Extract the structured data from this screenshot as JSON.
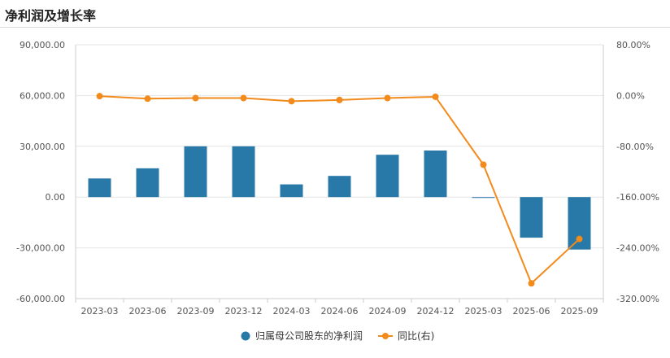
{
  "title": "净利润及增长率",
  "chart_data": {
    "type": "bar+line",
    "categories": [
      "2023-03",
      "2023-06",
      "2023-09",
      "2023-12",
      "2024-03",
      "2024-06",
      "2024-09",
      "2024-12",
      "2025-03",
      "2025-06",
      "2025-09"
    ],
    "series": [
      {
        "name": "归属母公司股东的净利润",
        "type": "bar",
        "axis": "left",
        "color": "#2878a8",
        "values": [
          11000,
          17000,
          30000,
          30000,
          7500,
          12500,
          25000,
          27500,
          -500,
          -24000,
          -31000
        ]
      },
      {
        "name": "同比(右)",
        "type": "line",
        "axis": "right",
        "color": "#f28a1c",
        "values": [
          -1,
          -5,
          -4,
          -4,
          -9,
          -7,
          -4,
          -2,
          -109,
          -296,
          -226
        ]
      }
    ],
    "y_left": {
      "ticks": [
        "90,000.00",
        "60,000.00",
        "30,000.00",
        "0.00",
        "-30,000.00",
        "-60,000.00"
      ],
      "ylim": [
        -60000,
        90000
      ]
    },
    "y_right": {
      "ticks": [
        "80.00%",
        "0.00%",
        "-80.00%",
        "-160.00%",
        "-240.00%",
        "-320.00%"
      ],
      "ylim": [
        -320,
        80
      ]
    },
    "grid": true,
    "legend_position": "bottom-center"
  }
}
